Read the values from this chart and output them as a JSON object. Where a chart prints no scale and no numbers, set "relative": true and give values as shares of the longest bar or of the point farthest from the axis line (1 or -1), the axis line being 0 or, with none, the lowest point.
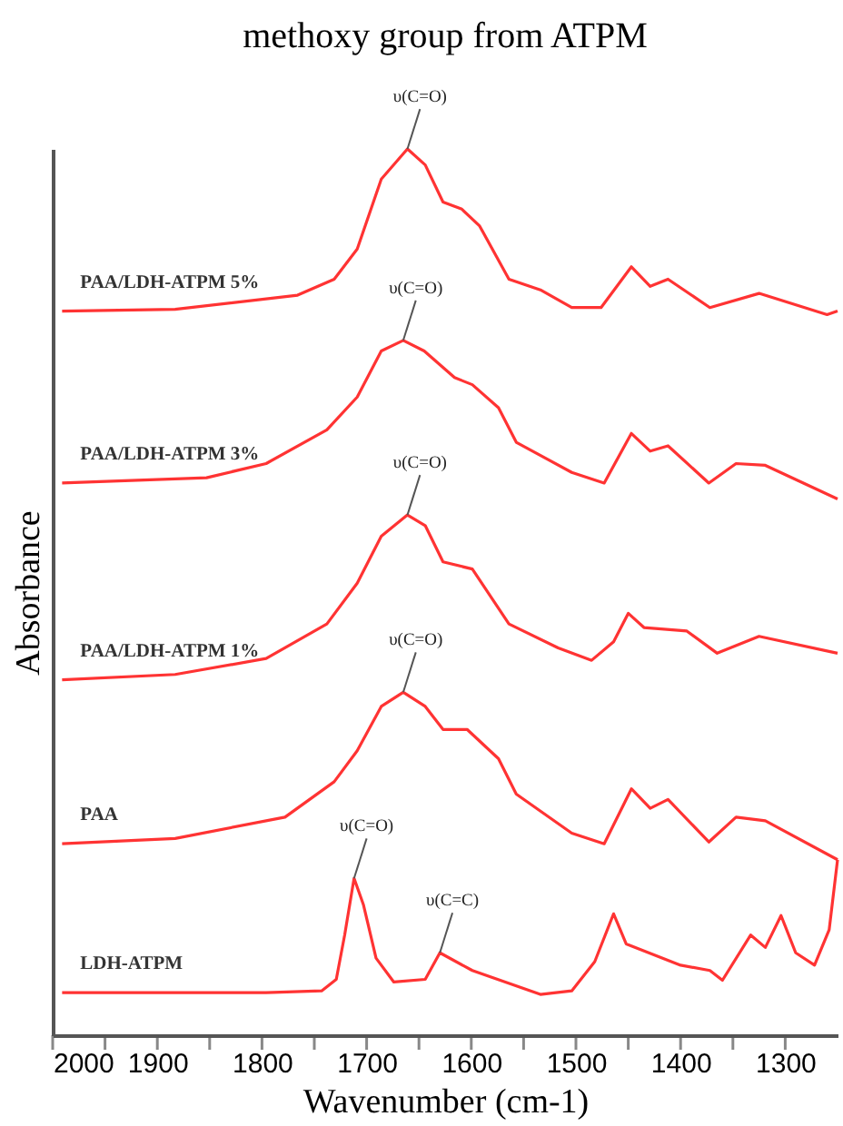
{
  "chart_data": {
    "type": "line",
    "title": "methoxy group from ATPM",
    "xlabel": "Wavenumber (cm-1)",
    "ylabel": "Absorbance",
    "relative": true,
    "legend": false,
    "grid": false,
    "xlim": [
      2000,
      1250
    ],
    "xticks": [
      2000,
      {
        "value": 1950,
        "label": null
      },
      1900,
      {
        "value": 1850,
        "label": null
      },
      1800,
      {
        "value": 1750,
        "label": null
      },
      1700,
      {
        "value": 1650,
        "label": null
      },
      1600,
      {
        "value": 1550,
        "label": null
      },
      1500,
      {
        "value": 1450,
        "label": null
      },
      1400,
      {
        "value": 1350,
        "label": null
      },
      1300
    ],
    "series": [
      {
        "name": "PAA/LDH-ATPM 5%",
        "color": "#ff3333",
        "x": [
          1991,
          1883,
          1766,
          1731,
          1709,
          1686,
          1661,
          1644,
          1627,
          1609,
          1592,
          1564,
          1534,
          1504,
          1476,
          1447,
          1429,
          1412,
          1372,
          1325,
          1260,
          1250
        ],
        "values": [
          0.817,
          0.819,
          0.835,
          0.853,
          0.887,
          0.966,
          1.0,
          0.982,
          0.94,
          0.932,
          0.913,
          0.853,
          0.841,
          0.821,
          0.821,
          0.867,
          0.845,
          0.853,
          0.821,
          0.837,
          0.813,
          0.817
        ]
      },
      {
        "name": "PAA/LDH-ATPM 3%",
        "color": "#ff3333",
        "x": [
          1991,
          1853,
          1796,
          1738,
          1709,
          1686,
          1665,
          1645,
          1616,
          1599,
          1574,
          1557,
          1504,
          1473,
          1447,
          1429,
          1412,
          1373,
          1347,
          1319,
          1250
        ],
        "values": [
          0.623,
          0.629,
          0.645,
          0.683,
          0.72,
          0.772,
          0.784,
          0.772,
          0.742,
          0.734,
          0.708,
          0.669,
          0.635,
          0.623,
          0.679,
          0.659,
          0.665,
          0.623,
          0.645,
          0.643,
          0.605
        ]
      },
      {
        "name": "PAA/LDH-ATPM 1%",
        "color": "#ff3333",
        "x": [
          1991,
          1883,
          1796,
          1738,
          1709,
          1686,
          1661,
          1644,
          1627,
          1599,
          1564,
          1517,
          1485,
          1464,
          1450,
          1435,
          1394,
          1365,
          1325,
          1250
        ],
        "values": [
          0.401,
          0.407,
          0.425,
          0.464,
          0.51,
          0.563,
          0.587,
          0.575,
          0.534,
          0.526,
          0.464,
          0.437,
          0.423,
          0.444,
          0.476,
          0.46,
          0.456,
          0.431,
          0.45,
          0.431
        ]
      },
      {
        "name": "PAA",
        "color": "#ff3333",
        "x": [
          1991,
          1883,
          1778,
          1731,
          1709,
          1686,
          1665,
          1644,
          1627,
          1604,
          1574,
          1557,
          1504,
          1473,
          1447,
          1429,
          1412,
          1373,
          1347,
          1319,
          1250
        ],
        "values": [
          0.216,
          0.222,
          0.246,
          0.286,
          0.321,
          0.371,
          0.387,
          0.371,
          0.345,
          0.345,
          0.312,
          0.272,
          0.228,
          0.216,
          0.278,
          0.256,
          0.266,
          0.218,
          0.246,
          0.242,
          0.198
        ]
      },
      {
        "name": "LDH-ATPM",
        "color": "#ff3333",
        "x": [
          1991,
          1796,
          1743,
          1729,
          1721,
          1712,
          1703,
          1691,
          1674,
          1644,
          1630,
          1599,
          1534,
          1504,
          1482,
          1464,
          1452,
          1400,
          1372,
          1360,
          1333,
          1319,
          1304,
          1290,
          1272,
          1258,
          1250
        ],
        "values": [
          0.048,
          0.048,
          0.05,
          0.063,
          0.113,
          0.177,
          0.147,
          0.087,
          0.06,
          0.063,
          0.093,
          0.073,
          0.046,
          0.05,
          0.083,
          0.137,
          0.103,
          0.079,
          0.073,
          0.062,
          0.113,
          0.099,
          0.135,
          0.093,
          0.079,
          0.119,
          0.198
        ]
      }
    ],
    "annotations": [
      {
        "text": "υ(C=O)",
        "x": 1661,
        "y": 1.0
      },
      {
        "text": "υ(C=O)",
        "x": 1665,
        "y": 0.784
      },
      {
        "text": "υ(C=O)",
        "x": 1661,
        "y": 0.587
      },
      {
        "text": "υ(C=O)",
        "x": 1665,
        "y": 0.387
      },
      {
        "text": "υ(C=O)",
        "x": 1712,
        "y": 0.177
      },
      {
        "text": "υ(C=C)",
        "x": 1630,
        "y": 0.093
      }
    ]
  }
}
